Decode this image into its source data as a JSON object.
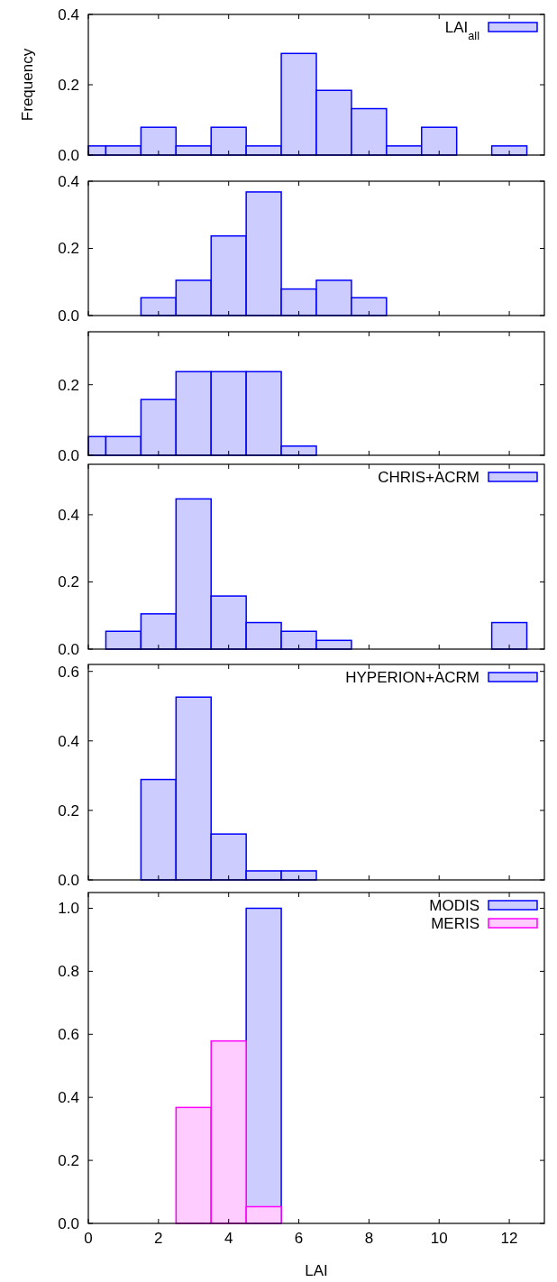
{
  "chart_data": [
    {
      "type": "histogram",
      "ylabel": "Frequency",
      "bins": [
        0,
        0.5,
        1.5,
        2.5,
        3.5,
        4.5,
        5.5,
        6.5,
        7.5,
        8.5,
        9.5,
        10.5,
        11.5,
        12.5
      ],
      "series": [
        {
          "name": "LAI$_{all}$",
          "color": "#ccccff",
          "values": [
            0.026,
            0.026,
            0.079,
            0.026,
            0.079,
            0.026,
            0.289,
            0.184,
            0.132,
            0.026,
            0.079,
            0,
            0.026
          ]
        }
      ],
      "xlim": [
        0,
        13
      ],
      "xticks": [
        0,
        2,
        4,
        6,
        8,
        10,
        12
      ],
      "ylim": [
        0,
        0.4
      ],
      "yticks": [
        {
          "value": 0,
          "label": "0.0"
        },
        0.2,
        0.4
      ],
      "tick_labels": "y",
      "legend": "top right"
    },
    {
      "type": "histogram",
      "bins": [
        1.5,
        2.5,
        3.5,
        4.5,
        5.5,
        6.5,
        7.5,
        8.5
      ],
      "series": [
        {
          "color": "#ccccff",
          "values": [
            0.053,
            0.105,
            0.237,
            0.368,
            0.079,
            0.105,
            0.053
          ]
        }
      ],
      "xlim": [
        0,
        13
      ],
      "xticks": [
        0,
        2,
        4,
        6,
        8,
        10,
        12
      ],
      "ylim": [
        0,
        0.4
      ],
      "yticks": [
        {
          "value": 0,
          "label": "0.0"
        },
        0.2,
        0.4
      ],
      "tick_labels": "y"
    },
    {
      "type": "histogram",
      "bins": [
        0,
        0.5,
        1.5,
        2.5,
        3.5,
        4.5,
        5.5,
        6.5
      ],
      "series": [
        {
          "color": "#ccccff",
          "values": [
            0.053,
            0.053,
            0.158,
            0.237,
            0.237,
            0.237,
            0.026
          ]
        }
      ],
      "xlim": [
        0,
        13
      ],
      "xticks": [
        0,
        2,
        4,
        6,
        8,
        10,
        12
      ],
      "ylim": [
        0,
        0.35
      ],
      "yticks": [
        {
          "value": 0,
          "label": "0.0"
        },
        0.2
      ],
      "tick_labels": "y"
    },
    {
      "type": "histogram",
      "bins": [
        0.5,
        1.5,
        2.5,
        3.5,
        4.5,
        5.5,
        6.5,
        7.5,
        8.5,
        9.5,
        10.5,
        11.5,
        12.5
      ],
      "series": [
        {
          "name": "CHRIS+ACRM",
          "color": "#ccccff",
          "values": [
            0.053,
            0.105,
            0.447,
            0.158,
            0.079,
            0.053,
            0.026,
            0,
            0,
            0,
            0,
            0.079
          ]
        }
      ],
      "xlim": [
        0,
        13
      ],
      "xticks": [
        0,
        2,
        4,
        6,
        8,
        10,
        12
      ],
      "ylim": [
        0,
        0.55
      ],
      "yticks": [
        {
          "value": 0,
          "label": "0.0"
        },
        0.2,
        0.4
      ],
      "tick_labels": "y",
      "legend": "top right"
    },
    {
      "type": "histogram",
      "bins": [
        1.5,
        2.5,
        3.5,
        4.5,
        5.5,
        6.5
      ],
      "series": [
        {
          "name": "HYPERION+ACRM",
          "color": "#ccccff",
          "values": [
            0.289,
            0.526,
            0.132,
            0.026,
            0.026
          ]
        }
      ],
      "xlim": [
        0,
        13
      ],
      "xticks": [
        0,
        2,
        4,
        6,
        8,
        10,
        12
      ],
      "ylim": [
        0,
        0.62
      ],
      "yticks": [
        {
          "value": 0,
          "label": "0.0"
        },
        0.2,
        0.4,
        0.6
      ],
      "tick_labels": "y",
      "legend": "top right"
    },
    {
      "type": "histogram",
      "xlabel": "LAI",
      "bins": [
        2.5,
        3.5,
        4.5,
        5.5
      ],
      "series": [
        {
          "name": "MODIS",
          "color": "#ccccff",
          "values": [
            0,
            0,
            1.0
          ]
        },
        {
          "name": "MERIS",
          "color": "#ffccff",
          "values": [
            0.368,
            0.579,
            0.053
          ]
        }
      ],
      "xlim": [
        0,
        13
      ],
      "xticks": [
        0,
        2,
        4,
        6,
        8,
        10,
        12
      ],
      "ylim": [
        0,
        1.05
      ],
      "yticks": [
        {
          "value": 0,
          "label": "0.0"
        },
        {
          "value": 0.2,
          "label": "0.2"
        },
        {
          "value": 0.4,
          "label": "0.4"
        },
        {
          "value": 0.6,
          "label": "0.6"
        },
        {
          "value": 0.8,
          "label": "0.8"
        },
        {
          "value": 1,
          "label": "1.0"
        }
      ],
      "legend": "top right"
    }
  ]
}
